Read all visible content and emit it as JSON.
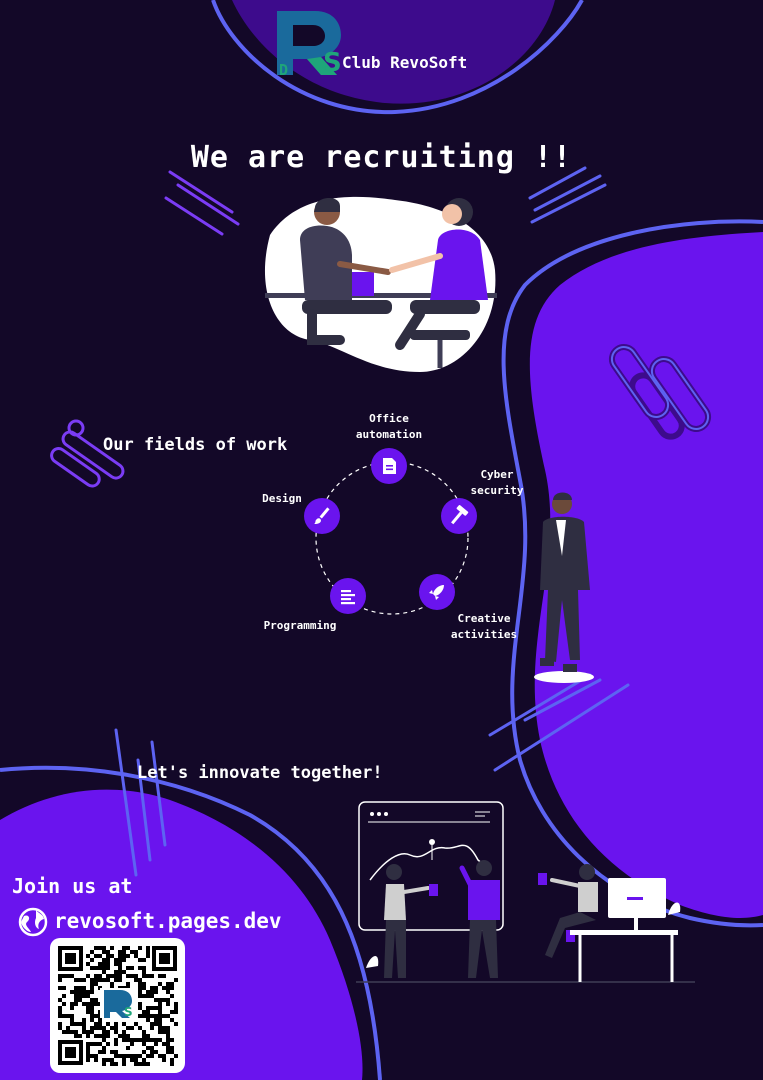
{
  "brand": {
    "logo_letters": "RDS",
    "name": "Club RevoSoft"
  },
  "headline": "We are recruiting !!",
  "fields": {
    "title": "Our fields of work",
    "items": [
      {
        "label": "Office\nautomation",
        "icon": "document-icon"
      },
      {
        "label": "Cyber\nsecurity",
        "icon": "hammer-icon"
      },
      {
        "label": "Creative\nactivities",
        "icon": "rocket-icon"
      },
      {
        "label": "Programming",
        "icon": "text-lines-icon"
      },
      {
        "label": "Design",
        "icon": "paintbrush-icon"
      }
    ]
  },
  "tagline": "Let's innovate together!",
  "contact": {
    "join_label": "Join us at",
    "url": "revosoft.pages.dev",
    "url_icon": "globe-icon",
    "qr_logo_letters": "RDS"
  },
  "colors": {
    "background": "#130828",
    "primary": "#6a14ee",
    "outline": "#5d63f2",
    "dark_blob": "#3d0b8c",
    "text": "#ffffff"
  }
}
